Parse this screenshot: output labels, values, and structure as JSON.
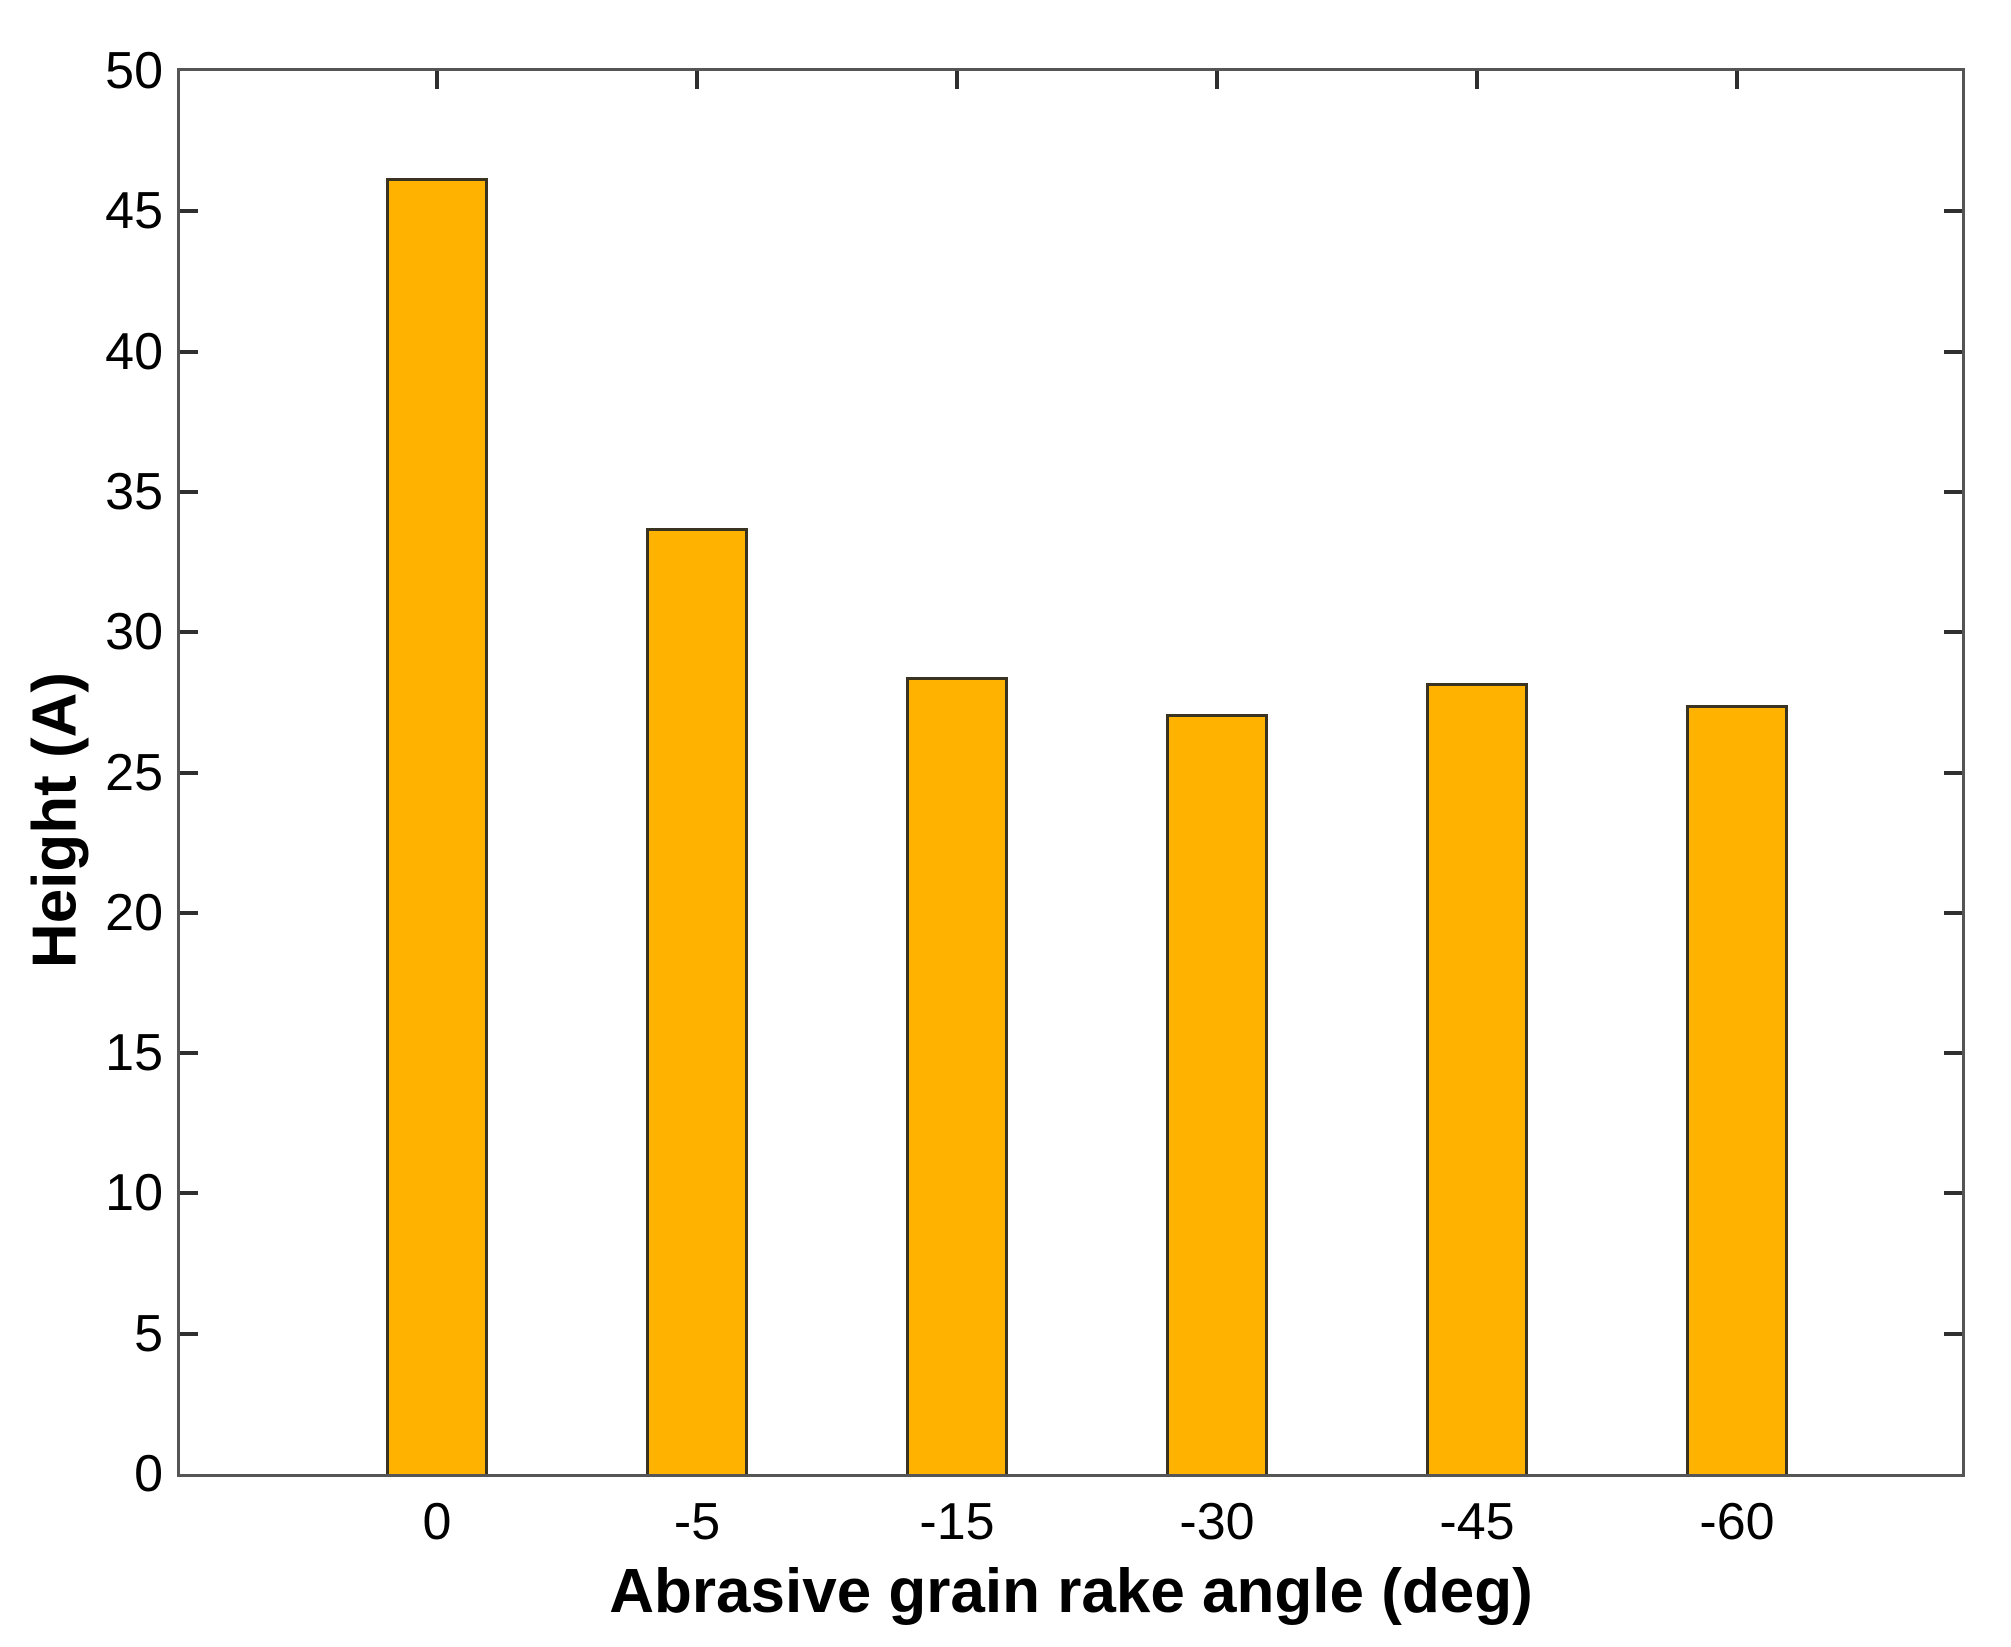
{
  "chart_data": {
    "type": "bar",
    "title": "",
    "categories": [
      "0",
      "-5",
      "-15",
      "-30",
      "-45",
      "-60"
    ],
    "values": [
      46.2,
      33.7,
      28.4,
      27.1,
      28.2,
      27.4
    ],
    "xlabel": "Abrasive grain rake angle (deg)",
    "ylabel": "Height (A)",
    "ylim": [
      0,
      50
    ],
    "yticks": [
      0,
      5,
      10,
      15,
      20,
      25,
      30,
      35,
      40,
      45,
      50
    ],
    "grid": false,
    "legend": null,
    "colors": {
      "bar_fill": "#FFB300",
      "bar_edge": "#3a3322",
      "axis_box": "#555555",
      "tick_mark": "#2f2f2f",
      "text": "#000000",
      "background": "#ffffff"
    }
  }
}
